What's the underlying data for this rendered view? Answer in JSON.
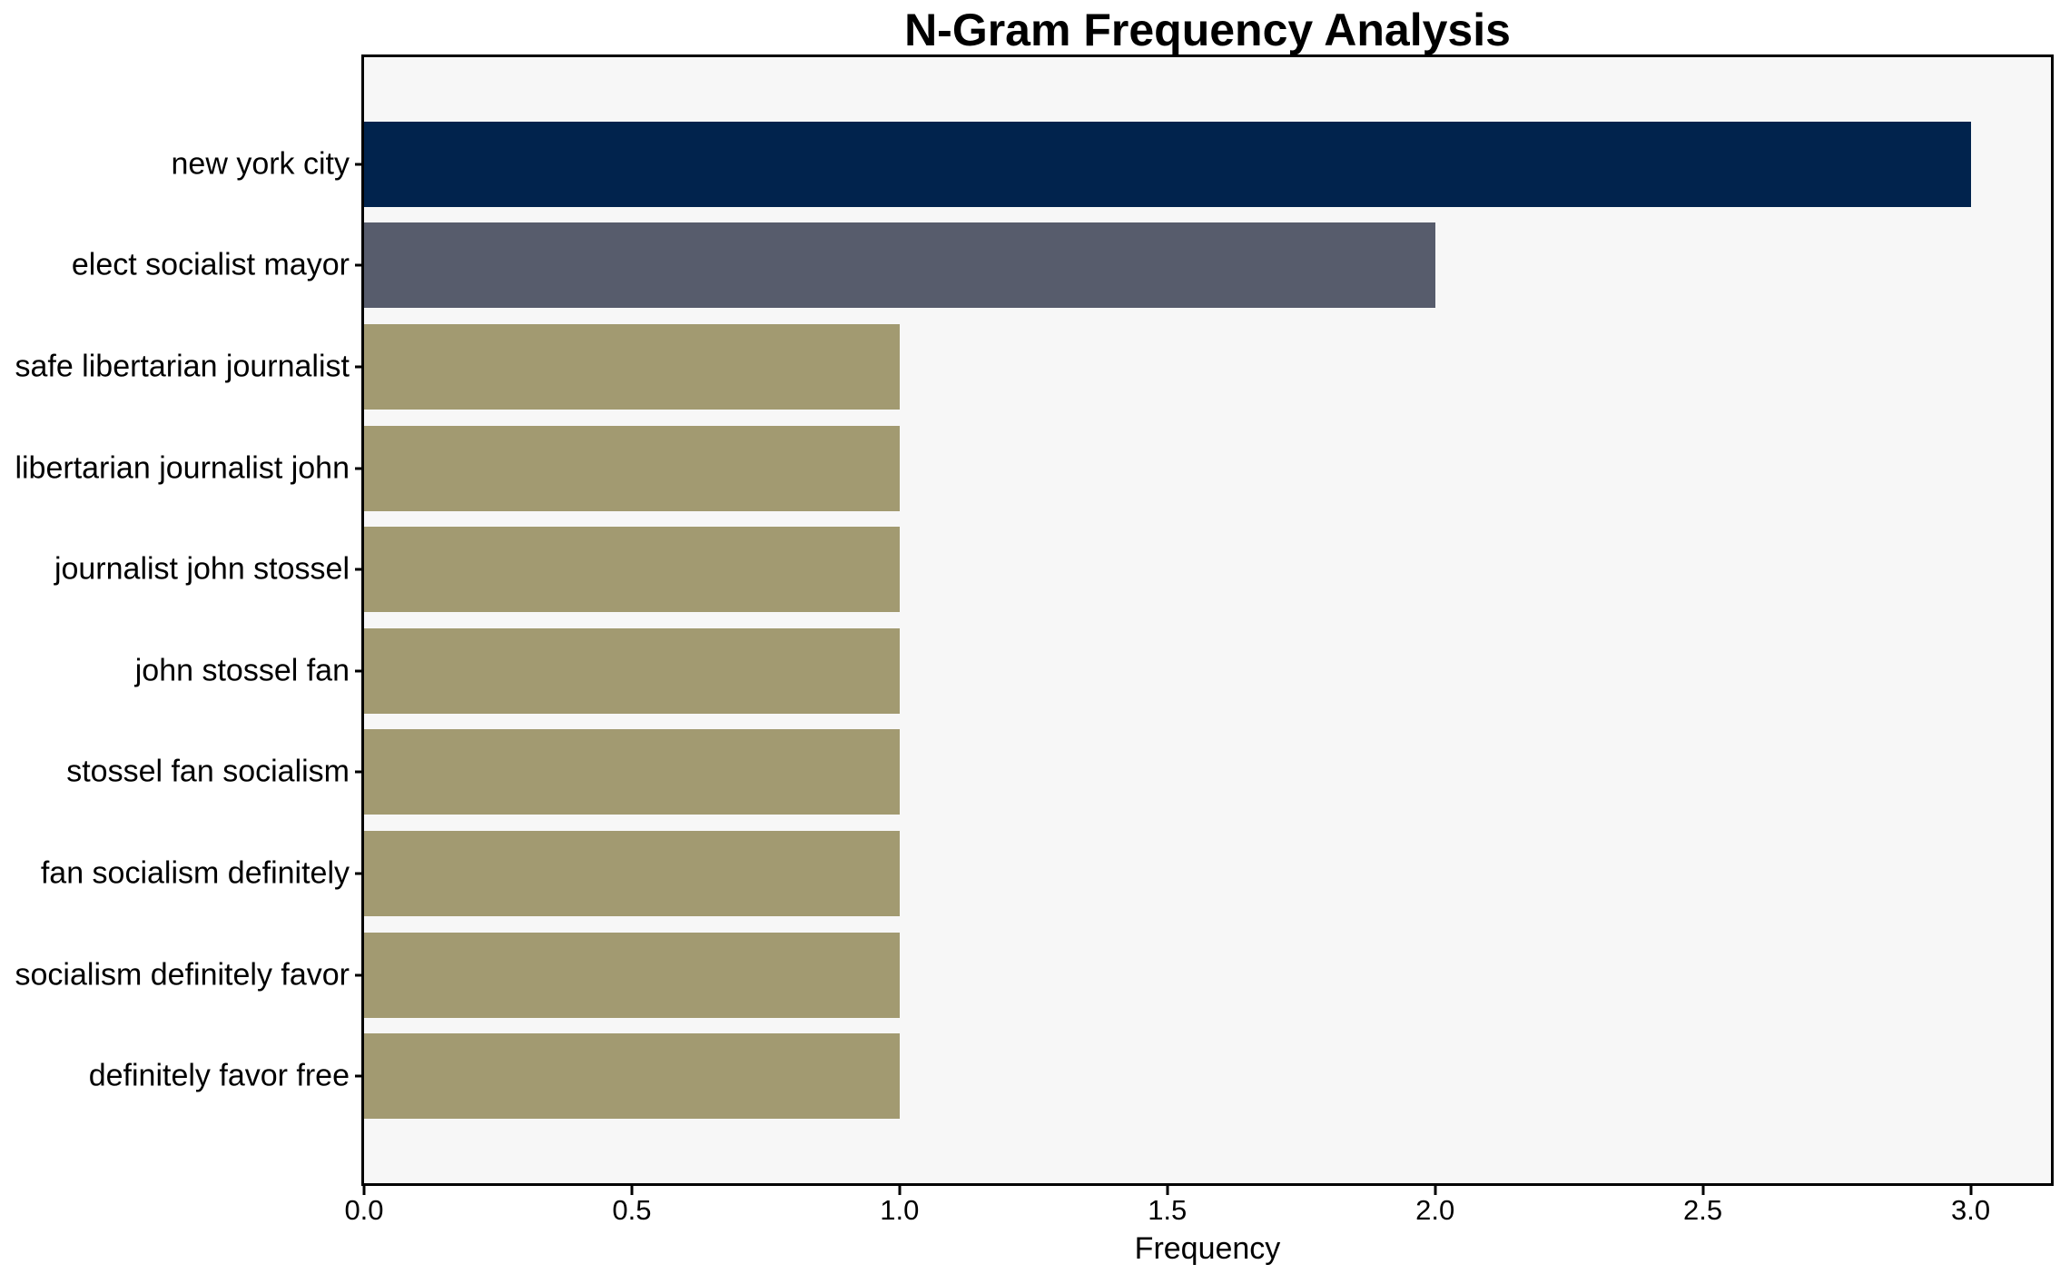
{
  "chart_data": {
    "type": "bar",
    "orientation": "horizontal",
    "title": "N-Gram Frequency Analysis",
    "xlabel": "Frequency",
    "ylabel": "",
    "categories": [
      "new york city",
      "elect socialist mayor",
      "safe libertarian journalist",
      "libertarian journalist john",
      "journalist john stossel",
      "john stossel fan",
      "stossel fan socialism",
      "fan socialism definitely",
      "socialism definitely favor",
      "definitely favor free"
    ],
    "values": [
      3,
      2,
      1,
      1,
      1,
      1,
      1,
      1,
      1,
      1
    ],
    "bar_colors": [
      "#01234d",
      "#575c6c",
      "#a29a71",
      "#a29a71",
      "#a29a71",
      "#a29a71",
      "#a29a71",
      "#a29a71",
      "#a29a71",
      "#a29a71"
    ],
    "xlim": [
      0,
      3.15
    ],
    "xticks": [
      0.0,
      0.5,
      1.0,
      1.5,
      2.0,
      2.5,
      3.0
    ],
    "xtick_labels": [
      "0.0",
      "0.5",
      "1.0",
      "1.5",
      "2.0",
      "2.5",
      "3.0"
    ],
    "grid": false,
    "legend": null,
    "plot_background": "#f7f7f7",
    "figure_background": "#ffffff",
    "spine_color": "#000000",
    "text_color": "#000000"
  }
}
